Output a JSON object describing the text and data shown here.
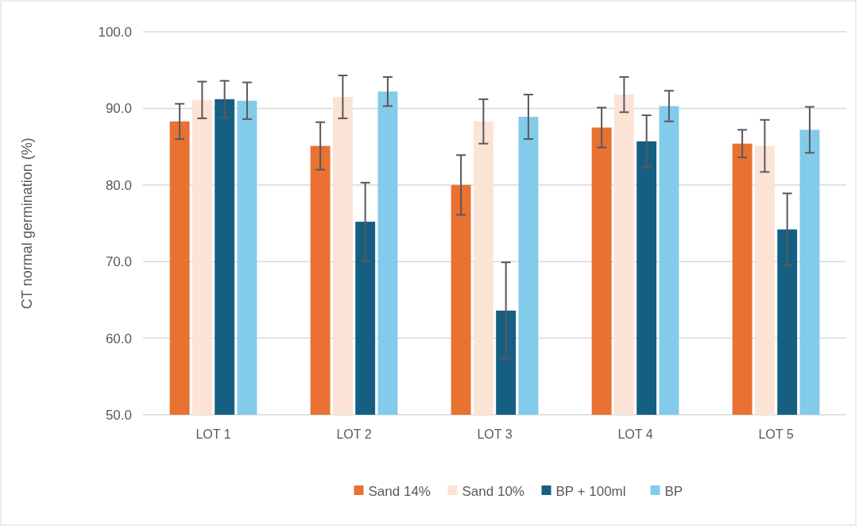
{
  "chart_data": {
    "type": "bar",
    "ylabel": "CT normal germination (%)",
    "categories": [
      "LOT 1",
      "LOT 2",
      "LOT 3",
      "LOT 4",
      "LOT 5"
    ],
    "series": [
      {
        "name": "Sand 14%",
        "color": "#e97132",
        "values": [
          88.3,
          85.1,
          80.0,
          87.5,
          85.4
        ],
        "errors": [
          2.3,
          3.1,
          3.9,
          2.6,
          1.8
        ]
      },
      {
        "name": "Sand 10%",
        "color": "#fbe3d6",
        "values": [
          91.1,
          91.5,
          88.3,
          91.8,
          85.1
        ],
        "errors": [
          2.4,
          2.8,
          2.9,
          2.3,
          3.4
        ]
      },
      {
        "name": "BP + 100ml",
        "color": "#156082",
        "values": [
          91.2,
          75.2,
          63.6,
          85.7,
          74.2
        ],
        "errors": [
          2.4,
          5.1,
          6.3,
          3.4,
          4.7
        ]
      },
      {
        "name": "BP",
        "color": "#83cbeb",
        "values": [
          91.0,
          92.2,
          88.9,
          90.3,
          87.2
        ],
        "errors": [
          2.4,
          1.9,
          2.9,
          2.0,
          3.0
        ]
      }
    ],
    "ylim": [
      50,
      100
    ],
    "yticks": [
      {
        "value": 50,
        "label": "50.0"
      },
      {
        "value": 60,
        "label": "60.0"
      },
      {
        "value": 70,
        "label": "70.0"
      },
      {
        "value": 80,
        "label": "80.0"
      },
      {
        "value": 90,
        "label": "90.0"
      },
      {
        "value": 100,
        "label": "100.0"
      }
    ],
    "grid": "y",
    "legend": "bottom"
  }
}
